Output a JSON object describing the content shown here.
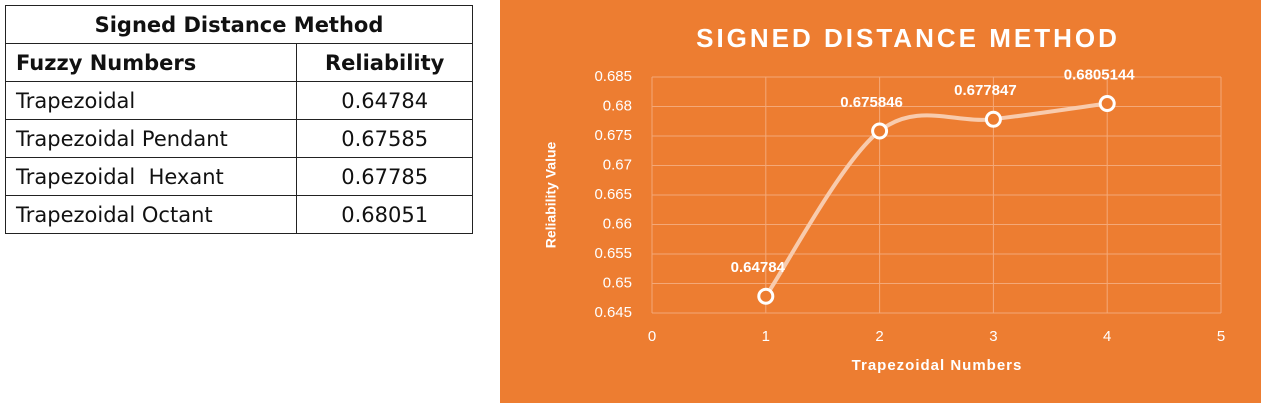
{
  "table": {
    "title": "Signed Distance Method",
    "header": [
      "Fuzzy Numbers",
      "Reliability"
    ],
    "rows": [
      [
        "Trapezoidal",
        "0.64784"
      ],
      [
        "Trapezoidal Pendant",
        "0.67585"
      ],
      [
        "Trapezoidal  Hexant",
        "0.67785"
      ],
      [
        "Trapezoidal Octant",
        "0.68051"
      ]
    ]
  },
  "chart_data": {
    "type": "line",
    "title": "SIGNED DISTANCE METHOD",
    "x_label": "Trapezoidal Numbers",
    "y_label": "Reliability Value",
    "x": [
      1,
      2,
      3,
      4
    ],
    "series": [
      {
        "name": "Reliability",
        "color": "#f8cbad",
        "values": [
          0.64784,
          0.675846,
          0.677847,
          0.6805144
        ]
      }
    ],
    "xlim": [
      0,
      5
    ],
    "xticks": [
      0,
      1,
      2,
      3,
      4,
      5
    ],
    "ylim": [
      0.645,
      0.685
    ],
    "yticks": [
      0.645,
      0.65,
      0.655,
      0.66,
      0.665,
      0.67,
      0.675,
      0.68,
      0.685
    ],
    "grid": true,
    "background": "#ed7d31"
  }
}
